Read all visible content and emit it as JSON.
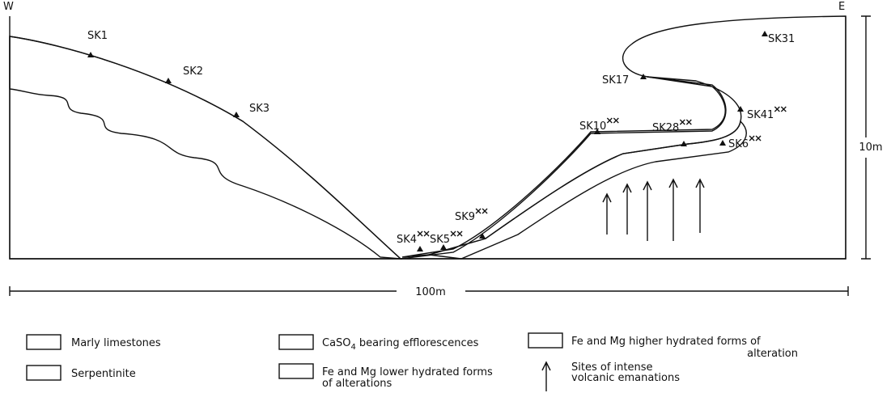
{
  "compass": {
    "west": "W",
    "east": "E"
  },
  "samples": [
    "SK1",
    "SK2",
    "SK3",
    "SK4",
    "SK5",
    "SK9",
    "SK10",
    "SK17",
    "SK28",
    "SK31",
    "SK41",
    "SK6"
  ],
  "scale": {
    "horizontal": "100m",
    "vertical": "10m"
  },
  "legend": {
    "marly": "Marly limestones",
    "serpentinite": "Serpentinite",
    "caso4": {
      "formula": "CaSO",
      "subscript": "4",
      "text": "bearing efflorescences"
    },
    "lower": [
      "Fe and Mg lower hydrated forms",
      "of alterations"
    ],
    "higher": [
      "Fe and Mg higher hydrated forms of",
      "alteration"
    ],
    "sites": [
      "Sites of intense",
      "volcanic emanations"
    ]
  }
}
